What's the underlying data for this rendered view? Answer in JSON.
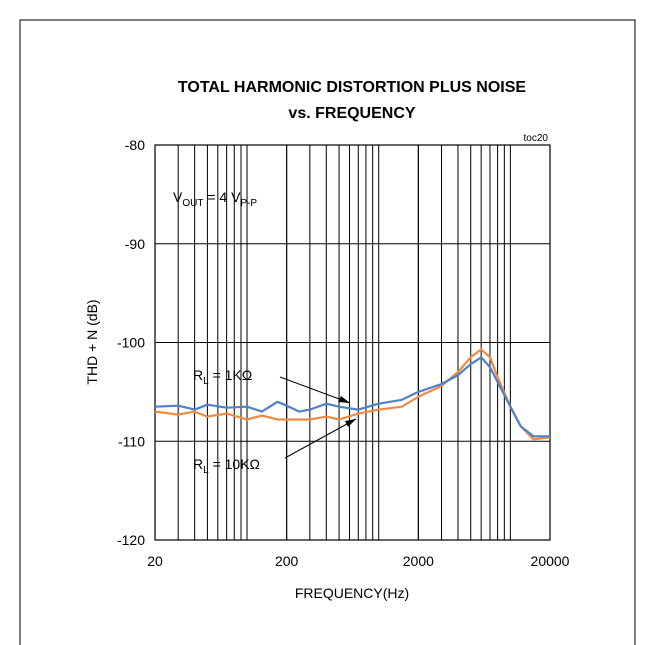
{
  "chart_data": {
    "type": "line",
    "title": [
      "TOTAL HARMONIC DISTORTION PLUS NOISE",
      "vs. FREQUENCY"
    ],
    "corner_label": "toc20",
    "x_label": "FREQUENCY(Hz)",
    "y_label": "THD + N (dB)",
    "x_log": true,
    "grid": true,
    "xlim": [
      20,
      20000
    ],
    "xticks": [
      20,
      200,
      2000,
      20000
    ],
    "ylim": [
      -120,
      -80
    ],
    "yticks": [
      -120,
      -110,
      -100,
      -90,
      -80
    ],
    "x": [
      20,
      30,
      40,
      50,
      70,
      100,
      130,
      170,
      200,
      250,
      300,
      400,
      500,
      700,
      1000,
      1500,
      2000,
      3000,
      4000,
      5000,
      6000,
      7000,
      8000,
      10000,
      12000,
      15000,
      20000
    ],
    "series": [
      {
        "name": "RL = 1KΩ",
        "color": "#4f81c7",
        "values": [
          -106.5,
          -106.4,
          -106.8,
          -106.3,
          -106.6,
          -106.5,
          -107,
          -106,
          -106.4,
          -107,
          -106.8,
          -106.2,
          -106.5,
          -106.8,
          -106.2,
          -105.8,
          -105,
          -104.2,
          -103.3,
          -102.2,
          -101.5,
          -102.5,
          -104,
          -106.5,
          -108.5,
          -109.5,
          -109.5
        ]
      },
      {
        "name": "RL = 10KΩ",
        "color": "#f08a3e",
        "values": [
          -107,
          -107.3,
          -107,
          -107.5,
          -107.2,
          -107.8,
          -107.4,
          -107.8,
          -107.8,
          -107.8,
          -107.8,
          -107.5,
          -107.8,
          -107.2,
          -106.8,
          -106.5,
          -105.5,
          -104.4,
          -103,
          -101.5,
          -100.7,
          -101.5,
          -103.5,
          -106.5,
          -108.5,
          -109.8,
          -109.6
        ]
      }
    ],
    "annotations": [
      {
        "parts": [
          "V",
          "OUT",
          " = 4 V",
          "P-P"
        ]
      },
      {
        "parts": [
          "R",
          "L",
          " = 1KΩ"
        ]
      },
      {
        "parts": [
          "R",
          "L",
          " = 10KΩ"
        ]
      }
    ]
  }
}
